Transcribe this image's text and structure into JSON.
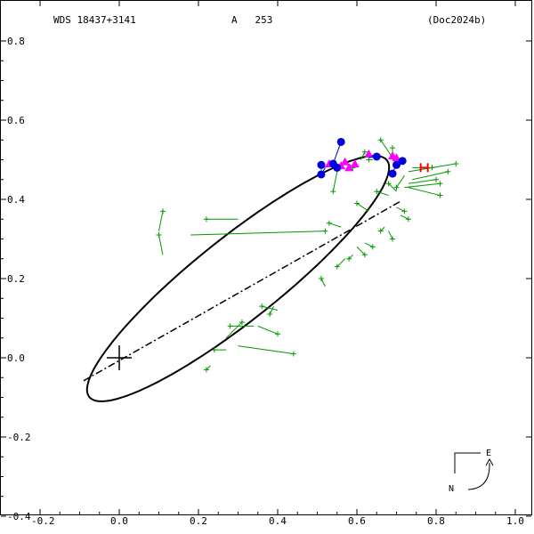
{
  "header": {
    "system": "WDS 18437+3141",
    "component": "A   253",
    "reference": "(Doc2024b)"
  },
  "compass": {
    "east_label": "E",
    "north_label": "N"
  },
  "chart_data": {
    "type": "scatter",
    "title": "",
    "xlabel": "",
    "ylabel": "",
    "xlim": [
      -0.2,
      1.0
    ],
    "ylim": [
      -0.4,
      0.8
    ],
    "x_ticks": [
      -0.2,
      0.0,
      0.2,
      0.4,
      0.6,
      0.8,
      1.0
    ],
    "x_tick_labels": [
      "-0.2",
      "0.0",
      "0.2",
      "0.4",
      "0.6",
      "0.8",
      "1.0"
    ],
    "y_ticks": [
      0.8,
      0.6,
      0.4,
      0.2,
      0.0,
      -0.2,
      -0.4
    ],
    "y_tick_labels": [
      "0.8",
      "0.6",
      "0.4",
      "0.2",
      "0.0",
      "-0.2",
      "-0.4"
    ],
    "grid": false,
    "orbit": {
      "center": [
        0.3,
        0.2
      ],
      "semi_major": 0.48,
      "semi_minor": 0.105,
      "angle_deg": 38.5
    },
    "primary": [
      0.0,
      0.0
    ],
    "line_of_nodes": [
      [
        -0.09,
        -0.058
      ],
      [
        0.71,
        0.395
      ]
    ],
    "micrometer_obs": [
      {
        "obs": [
          0.11,
          0.37
        ],
        "pred": [
          0.1,
          0.32
        ]
      },
      {
        "obs": [
          0.1,
          0.31
        ],
        "pred": [
          0.11,
          0.26
        ]
      },
      {
        "obs": [
          0.22,
          0.35
        ],
        "pred": [
          0.3,
          0.35
        ]
      },
      {
        "obs": [
          0.52,
          0.32
        ],
        "pred": [
          0.18,
          0.31
        ]
      },
      {
        "obs": [
          0.44,
          0.01
        ],
        "pred": [
          0.3,
          0.03
        ]
      },
      {
        "obs": [
          0.31,
          0.09
        ],
        "pred": [
          0.27,
          0.05
        ]
      },
      {
        "obs": [
          0.28,
          0.08
        ],
        "pred": [
          0.34,
          0.08
        ]
      },
      {
        "obs": [
          0.4,
          0.06
        ],
        "pred": [
          0.35,
          0.08
        ]
      },
      {
        "obs": [
          0.36,
          0.13
        ],
        "pred": [
          0.4,
          0.12
        ]
      },
      {
        "obs": [
          0.38,
          0.11
        ],
        "pred": [
          0.39,
          0.13
        ]
      },
      {
        "obs": [
          0.24,
          0.02
        ],
        "pred": [
          0.27,
          0.02
        ]
      },
      {
        "obs": [
          0.22,
          -0.03
        ],
        "pred": [
          0.23,
          -0.02
        ]
      },
      {
        "obs": [
          0.51,
          0.2
        ],
        "pred": [
          0.52,
          0.18
        ]
      },
      {
        "obs": [
          0.55,
          0.23
        ],
        "pred": [
          0.57,
          0.25
        ]
      },
      {
        "obs": [
          0.58,
          0.25
        ],
        "pred": [
          0.59,
          0.26
        ]
      },
      {
        "obs": [
          0.62,
          0.26
        ],
        "pred": [
          0.6,
          0.28
        ]
      },
      {
        "obs": [
          0.64,
          0.28
        ],
        "pred": [
          0.62,
          0.29
        ]
      },
      {
        "obs": [
          0.53,
          0.34
        ],
        "pred": [
          0.56,
          0.33
        ]
      },
      {
        "obs": [
          0.6,
          0.39
        ],
        "pred": [
          0.63,
          0.37
        ]
      },
      {
        "obs": [
          0.65,
          0.42
        ],
        "pred": [
          0.68,
          0.41
        ]
      },
      {
        "obs": [
          0.68,
          0.44
        ],
        "pred": [
          0.7,
          0.42
        ]
      },
      {
        "obs": [
          0.72,
          0.37
        ],
        "pred": [
          0.7,
          0.38
        ]
      },
      {
        "obs": [
          0.73,
          0.35
        ],
        "pred": [
          0.71,
          0.36
        ]
      },
      {
        "obs": [
          0.69,
          0.3
        ],
        "pred": [
          0.68,
          0.32
        ]
      },
      {
        "obs": [
          0.66,
          0.32
        ],
        "pred": [
          0.67,
          0.33
        ]
      },
      {
        "obs": [
          0.81,
          0.41
        ],
        "pred": [
          0.73,
          0.43
        ]
      },
      {
        "obs": [
          0.8,
          0.45
        ],
        "pred": [
          0.73,
          0.44
        ]
      },
      {
        "obs": [
          0.83,
          0.47
        ],
        "pred": [
          0.74,
          0.45
        ]
      },
      {
        "obs": [
          0.85,
          0.49
        ],
        "pred": [
          0.73,
          0.47
        ]
      },
      {
        "obs": [
          0.79,
          0.48
        ],
        "pred": [
          0.74,
          0.48
        ]
      },
      {
        "obs": [
          0.81,
          0.44
        ],
        "pred": [
          0.72,
          0.43
        ]
      },
      {
        "obs": [
          0.7,
          0.43
        ],
        "pred": [
          0.72,
          0.46
        ]
      },
      {
        "obs": [
          0.66,
          0.55
        ],
        "pred": [
          0.7,
          0.49
        ]
      },
      {
        "obs": [
          0.69,
          0.53
        ],
        "pred": [
          0.69,
          0.5
        ]
      },
      {
        "obs": [
          0.62,
          0.52
        ],
        "pred": [
          0.61,
          0.5
        ]
      },
      {
        "obs": [
          0.51,
          0.48
        ],
        "pred": [
          0.57,
          0.49
        ]
      },
      {
        "obs": [
          0.54,
          0.42
        ],
        "pred": [
          0.55,
          0.47
        ]
      },
      {
        "obs": [
          0.59,
          0.48
        ],
        "pred": [
          0.58,
          0.49
        ]
      },
      {
        "obs": [
          0.63,
          0.5
        ],
        "pred": [
          0.64,
          0.5
        ]
      }
    ],
    "speckle_obs": [
      {
        "obs": [
          0.56,
          0.545
        ],
        "pred": [
          0.54,
          0.49
        ]
      },
      {
        "obs": [
          0.51,
          0.487
        ],
        "pred": [
          0.52,
          0.49
        ]
      },
      {
        "obs": [
          0.51,
          0.463
        ],
        "pred": [
          0.52,
          0.48
        ]
      },
      {
        "obs": [
          0.54,
          0.49
        ],
        "pred": [
          0.53,
          0.49
        ]
      },
      {
        "obs": [
          0.55,
          0.48
        ],
        "pred": [
          0.55,
          0.49
        ]
      },
      {
        "obs": [
          0.65,
          0.508
        ],
        "pred": [
          0.63,
          0.505
        ]
      },
      {
        "obs": [
          0.69,
          0.465
        ],
        "pred": [
          0.7,
          0.49
        ]
      },
      {
        "obs": [
          0.7,
          0.487
        ],
        "pred": [
          0.7,
          0.495
        ]
      },
      {
        "obs": [
          0.715,
          0.497
        ],
        "pred": [
          0.705,
          0.495
        ]
      }
    ],
    "triangle_obs": [
      [
        0.53,
        0.49
      ],
      [
        0.56,
        0.485
      ],
      [
        0.58,
        0.48
      ],
      [
        0.57,
        0.495
      ],
      [
        0.595,
        0.49
      ],
      [
        0.63,
        0.515
      ],
      [
        0.69,
        0.51
      ],
      [
        0.7,
        0.505
      ]
    ],
    "hipparcos_obs": [
      [
        0.77,
        0.48
      ]
    ],
    "colors": {
      "orbit": "#000000",
      "micrometer": "#009900",
      "speckle": "#0000dd",
      "triangle": "#ff00ff",
      "hipparcos": "#ff0000"
    }
  }
}
